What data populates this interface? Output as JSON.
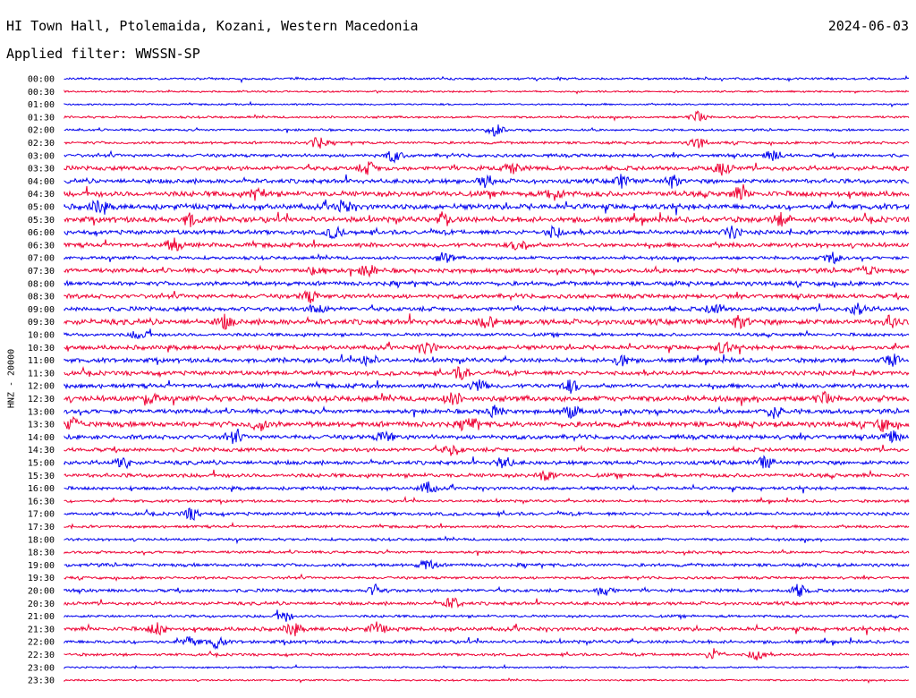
{
  "header": {
    "station": "HI Town Hall, Ptolemaida, Kozani, Western Macedonia",
    "date": "2024-06-03",
    "filter": "Applied filter: WWSSN-SP"
  },
  "channel_label": "HNZ - 20000",
  "colors": {
    "even_rows": "#0000ee",
    "odd_rows": "#ee0033",
    "text": "#000000"
  },
  "chart_data": {
    "type": "line",
    "row_labels": [
      "00:00",
      "00:30",
      "01:00",
      "01:30",
      "02:00",
      "02:30",
      "03:00",
      "03:30",
      "04:00",
      "04:30",
      "05:00",
      "05:30",
      "06:00",
      "06:30",
      "07:00",
      "07:30",
      "08:00",
      "08:30",
      "09:00",
      "09:30",
      "10:00",
      "10:30",
      "11:00",
      "11:30",
      "12:00",
      "12:30",
      "13:00",
      "13:30",
      "14:00",
      "14:30",
      "15:00",
      "15:30",
      "16:00",
      "16:30",
      "17:00",
      "17:30",
      "18:00",
      "18:30",
      "19:00",
      "19:30",
      "20:00",
      "20:30",
      "21:00",
      "21:30",
      "22:00",
      "22:30",
      "23:00",
      "23:30"
    ],
    "rows": [
      {
        "noise": 1.0,
        "bursts": []
      },
      {
        "noise": 0.8,
        "bursts": []
      },
      {
        "noise": 0.8,
        "bursts": []
      },
      {
        "noise": 1.0,
        "bursts": [
          0.75
        ]
      },
      {
        "noise": 1.0,
        "bursts": [
          0.51
        ]
      },
      {
        "noise": 1.2,
        "bursts": [
          0.3,
          0.75
        ]
      },
      {
        "noise": 1.5,
        "bursts": [
          0.39,
          0.84
        ]
      },
      {
        "noise": 2.0,
        "bursts": [
          0.36,
          0.53,
          0.78
        ]
      },
      {
        "noise": 2.0,
        "bursts": [
          0.5,
          0.66,
          0.72
        ]
      },
      {
        "noise": 2.5,
        "bursts": [
          0.23,
          0.58,
          0.8
        ]
      },
      {
        "noise": 2.5,
        "bursts": [
          0.04,
          0.33
        ]
      },
      {
        "noise": 2.5,
        "bursts": [
          0.15,
          0.45,
          0.85
        ]
      },
      {
        "noise": 2.0,
        "bursts": [
          0.32,
          0.58,
          0.79
        ]
      },
      {
        "noise": 2.0,
        "bursts": [
          0.13,
          0.54
        ]
      },
      {
        "noise": 1.5,
        "bursts": [
          0.45,
          0.91
        ]
      },
      {
        "noise": 2.0,
        "bursts": [
          0.3,
          0.36,
          0.95
        ]
      },
      {
        "noise": 2.0,
        "bursts": []
      },
      {
        "noise": 2.0,
        "bursts": [
          0.29
        ]
      },
      {
        "noise": 2.0,
        "bursts": [
          0.3,
          0.77,
          0.94
        ]
      },
      {
        "noise": 2.5,
        "bursts": [
          0.19,
          0.5,
          0.8,
          0.98
        ]
      },
      {
        "noise": 1.5,
        "bursts": [
          0.09
        ]
      },
      {
        "noise": 2.0,
        "bursts": [
          0.43,
          0.78
        ]
      },
      {
        "noise": 2.0,
        "bursts": [
          0.36,
          0.66,
          0.98
        ]
      },
      {
        "noise": 2.0,
        "bursts": [
          0.47
        ]
      },
      {
        "noise": 2.0,
        "bursts": [
          0.49,
          0.6
        ]
      },
      {
        "noise": 2.5,
        "bursts": [
          0.1,
          0.46,
          0.9
        ]
      },
      {
        "noise": 2.0,
        "bursts": [
          0.51,
          0.6,
          0.84
        ]
      },
      {
        "noise": 2.5,
        "bursts": [
          0.01,
          0.23,
          0.48,
          0.97
        ]
      },
      {
        "noise": 2.0,
        "bursts": [
          0.2,
          0.38,
          0.98
        ]
      },
      {
        "noise": 1.8,
        "bursts": [
          0.46
        ]
      },
      {
        "noise": 1.8,
        "bursts": [
          0.07,
          0.52,
          0.83
        ]
      },
      {
        "noise": 1.8,
        "bursts": [
          0.57
        ]
      },
      {
        "noise": 1.5,
        "bursts": [
          0.43
        ]
      },
      {
        "noise": 1.2,
        "bursts": []
      },
      {
        "noise": 1.5,
        "bursts": [
          0.15
        ]
      },
      {
        "noise": 1.2,
        "bursts": []
      },
      {
        "noise": 1.2,
        "bursts": []
      },
      {
        "noise": 1.2,
        "bursts": []
      },
      {
        "noise": 1.5,
        "bursts": [
          0.43
        ]
      },
      {
        "noise": 1.2,
        "bursts": []
      },
      {
        "noise": 1.5,
        "bursts": [
          0.37,
          0.64,
          0.87
        ]
      },
      {
        "noise": 1.5,
        "bursts": [
          0.46
        ]
      },
      {
        "noise": 1.2,
        "bursts": [
          0.26
        ]
      },
      {
        "noise": 1.8,
        "bursts": [
          0.11,
          0.27,
          0.37
        ]
      },
      {
        "noise": 1.5,
        "bursts": [
          0.15,
          0.18
        ]
      },
      {
        "noise": 1.2,
        "bursts": [
          0.77,
          0.82
        ]
      },
      {
        "noise": 0.8,
        "bursts": []
      },
      {
        "noise": 0.8,
        "bursts": []
      }
    ]
  }
}
